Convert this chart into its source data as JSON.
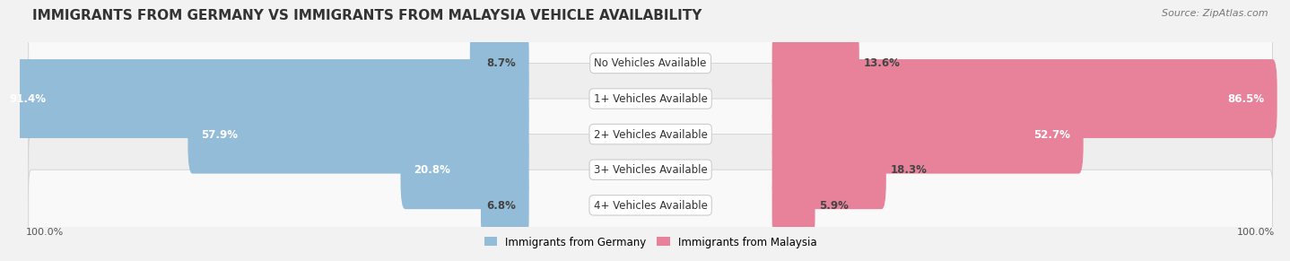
{
  "title": "IMMIGRANTS FROM GERMANY VS IMMIGRANTS FROM MALAYSIA VEHICLE AVAILABILITY",
  "source": "Source: ZipAtlas.com",
  "categories": [
    "No Vehicles Available",
    "1+ Vehicles Available",
    "2+ Vehicles Available",
    "3+ Vehicles Available",
    "4+ Vehicles Available"
  ],
  "germany_values": [
    8.7,
    91.4,
    57.9,
    20.8,
    6.8
  ],
  "malaysia_values": [
    13.6,
    86.5,
    52.7,
    18.3,
    5.9
  ],
  "germany_color": "#92bcd8",
  "malaysia_color": "#e8829a",
  "germany_label": "Immigrants from Germany",
  "malaysia_label": "Immigrants from Malaysia",
  "background_color": "#f2f2f2",
  "row_colors": [
    "#f9f9f9",
    "#eeeeee"
  ],
  "max_value": 100.0,
  "left_label": "100.0%",
  "right_label": "100.0%",
  "title_fontsize": 11,
  "source_fontsize": 8,
  "label_fontsize": 8.5,
  "pct_fontsize": 8.5
}
